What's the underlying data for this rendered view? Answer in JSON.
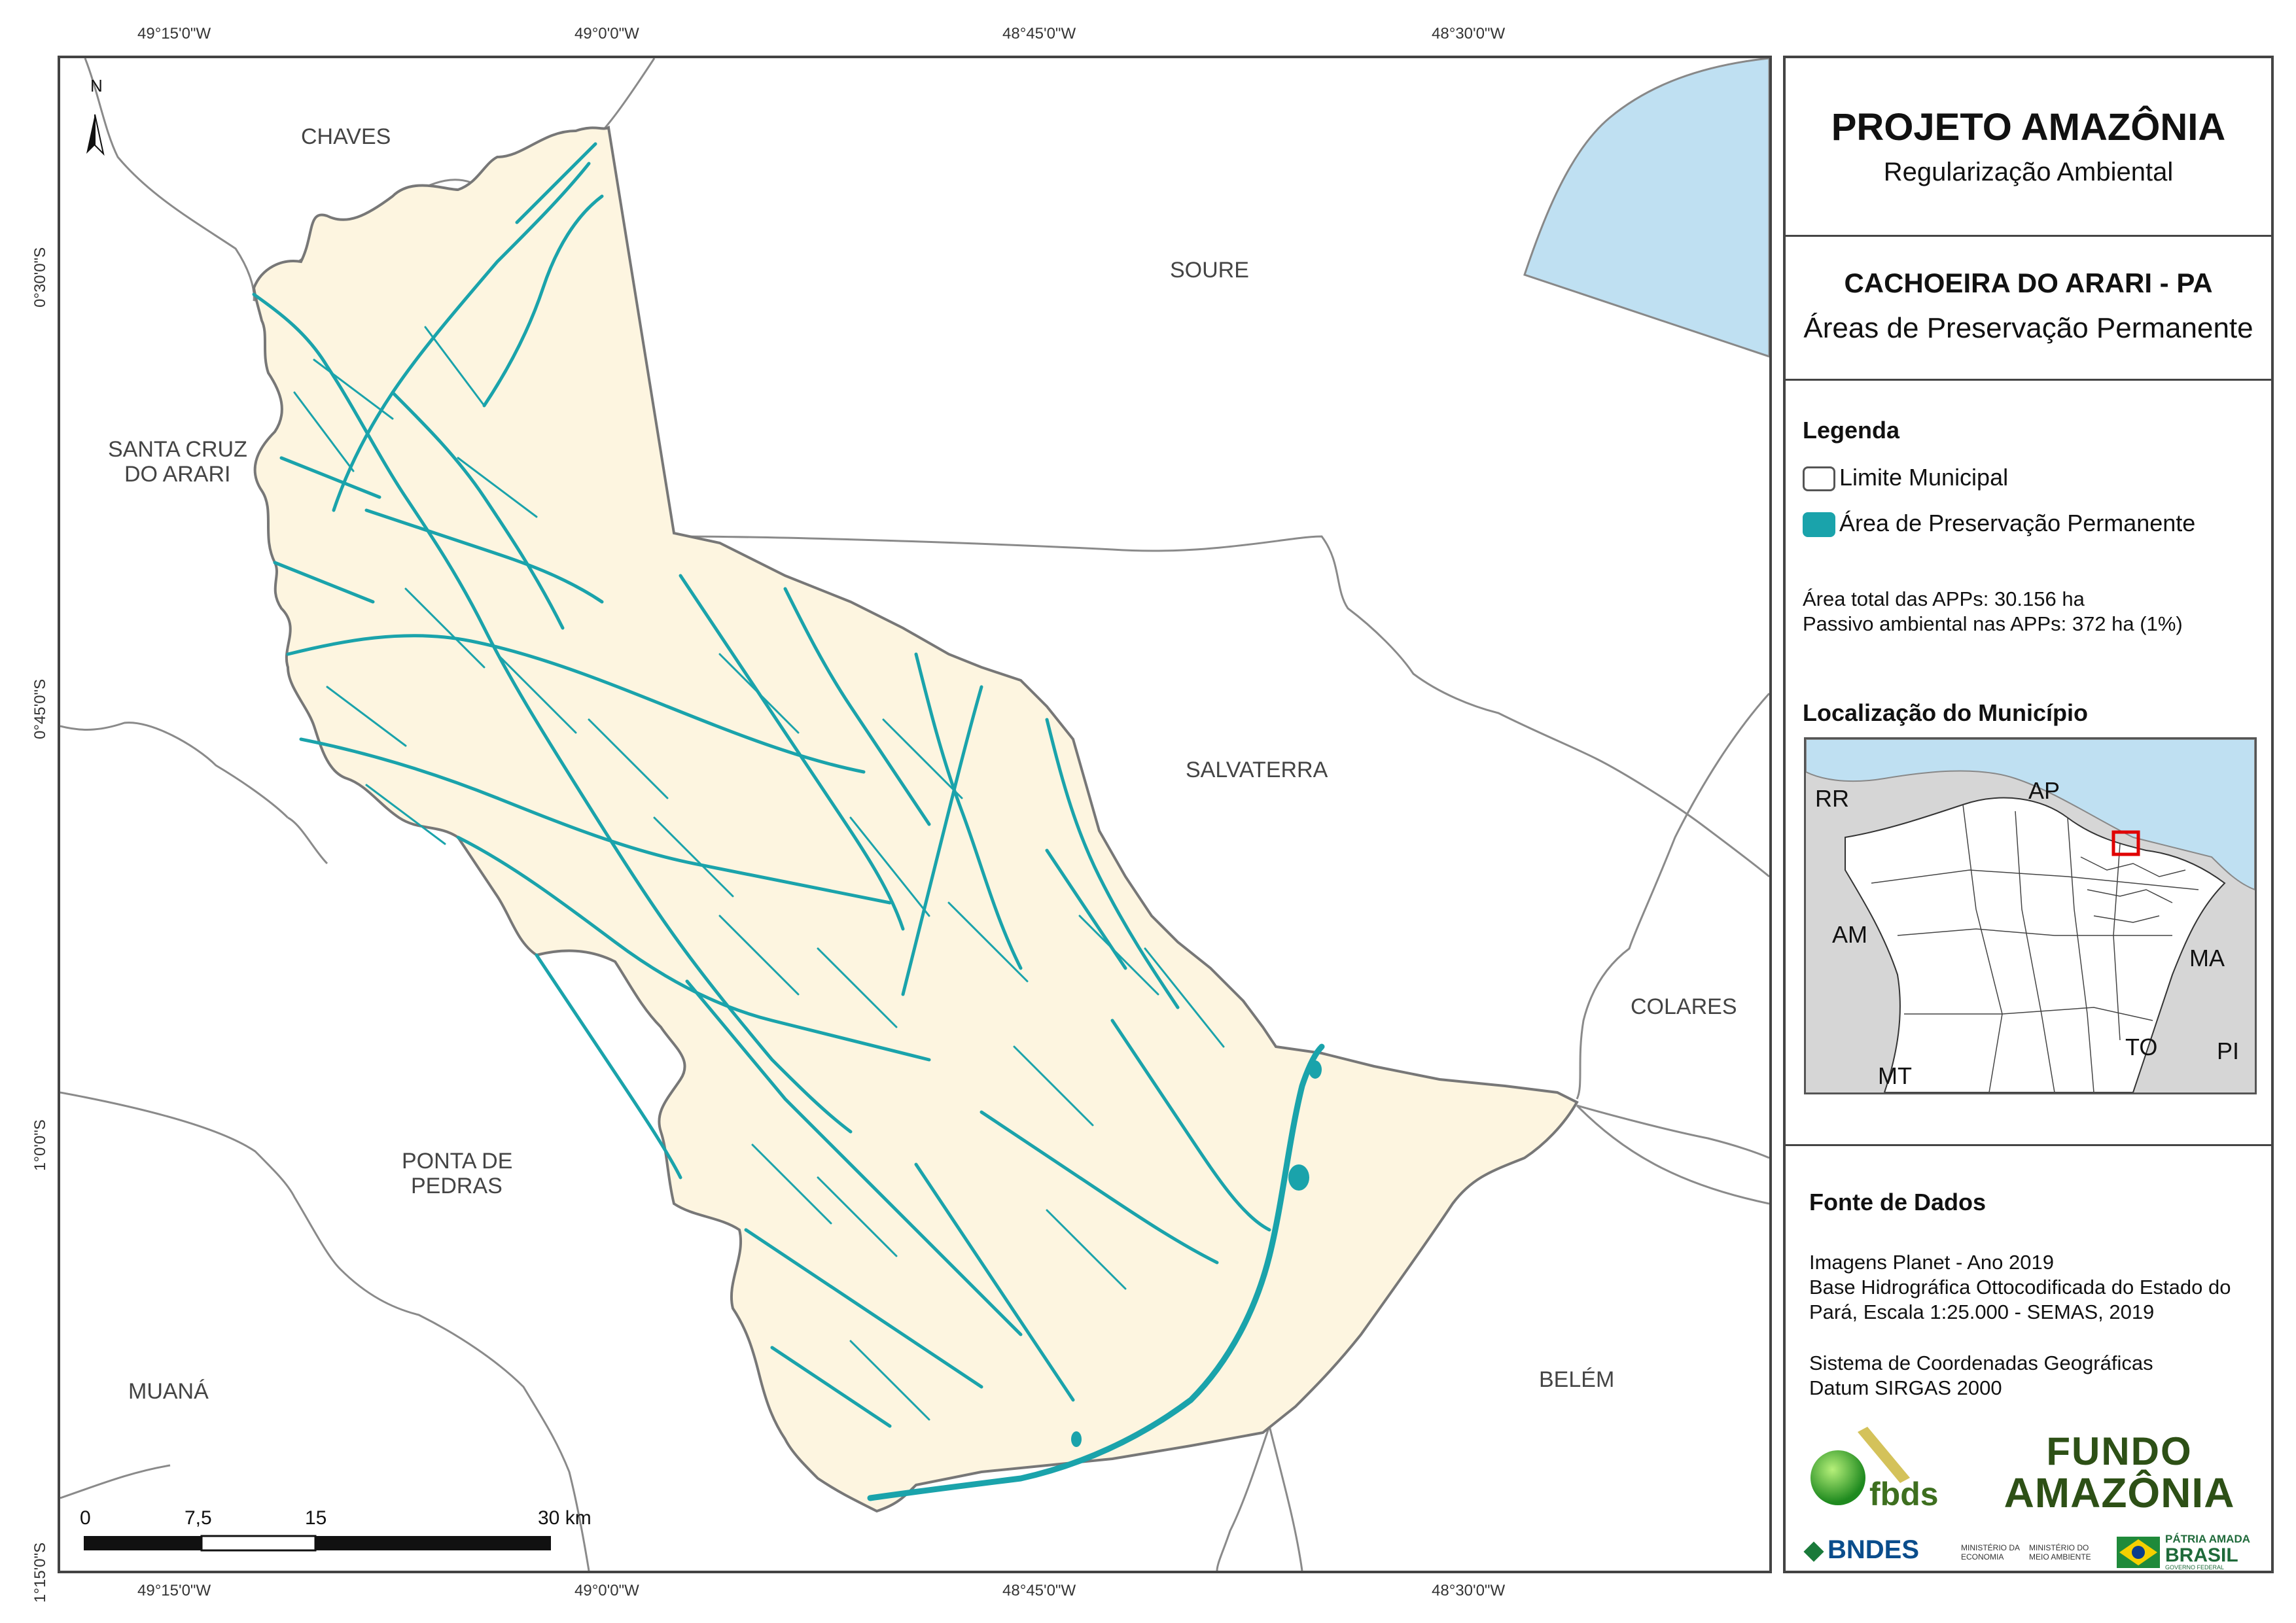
{
  "coordinates": {
    "top": [
      "49°15'0\"W",
      "49°0'0\"W",
      "48°45'0\"W",
      "48°30'0\"W"
    ],
    "bottom": [
      "49°15'0\"W",
      "49°0'0\"W",
      "48°45'0\"W",
      "48°30'0\"W"
    ],
    "left": [
      "0°30'0\"S",
      "0°45'0\"S",
      "1°0'0\"S",
      "1°15'0\"S"
    ]
  },
  "map": {
    "north_arrow": "N",
    "municipalities": {
      "chaves": "CHAVES",
      "soure": "SOURE",
      "santa_cruz_1": "SANTA CRUZ",
      "santa_cruz_2": "DO ARARI",
      "salvaterra": "SALVATERRA",
      "colares": "COLARES",
      "ponta_1": "PONTA DE",
      "ponta_2": "PEDRAS",
      "muana": "MUANÁ",
      "belem": "BELÉM"
    },
    "scale_bar": {
      "ticks": [
        "0",
        "7,5",
        "15",
        "30 km"
      ]
    },
    "colors": {
      "municipality_fill": "#fdf5e0",
      "app": "#1aa3ab",
      "water": "#bfe0f2",
      "border": "#777777"
    }
  },
  "panel": {
    "title": "PROJETO AMAZÔNIA",
    "subtitle": "Regularização Ambiental",
    "municipality": "CACHOEIRA DO ARARI - PA",
    "theme": "Áreas de Preservação Permanente",
    "legend": {
      "heading": "Legenda",
      "items": [
        {
          "label": "Limite Municipal",
          "color": "#ffffff"
        },
        {
          "label": "Área de Preservação Permanente",
          "color": "#1aa3ab"
        }
      ],
      "stat1": "Área total das APPs: 30.156 ha",
      "stat2": "Passivo ambiental nas APPs: 372 ha (1%)"
    },
    "location": {
      "heading": "Localização do Município",
      "states": [
        "RR",
        "AP",
        "AM",
        "MA",
        "TO",
        "MT",
        "PI"
      ]
    },
    "source": {
      "heading": "Fonte de Dados",
      "lines": [
        "Imagens Planet - Ano 2019",
        "Base Hidrográfica Ottocodificada do Estado do",
        "Pará, Escala 1:25.000 - SEMAS, 2019"
      ],
      "crs": [
        "Sistema de Coordenadas Geográficas",
        "Datum SIRGAS 2000"
      ]
    },
    "logos": {
      "fbds": "fbds",
      "fundo_1": "FUNDO",
      "fundo_2": "AMAZÔNIA",
      "bndes": "BNDES",
      "min_eco": "MINISTÉRIO DA ECONOMIA",
      "min_meio": "MINISTÉRIO DO MEIO AMBIENTE",
      "patria_1": "PÁTRIA AMADA",
      "patria_2": "BRASIL",
      "patria_3": "GOVERNO FEDERAL"
    }
  }
}
